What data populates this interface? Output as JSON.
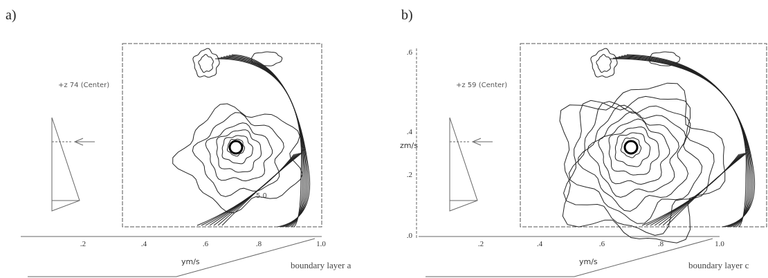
{
  "panels": [
    {
      "label": "a)",
      "annotation": "+z 74 (Center)",
      "xticks": [
        ".2",
        ".4",
        ".6",
        ".8",
        "1.0"
      ],
      "xlabel": "ym/s",
      "contour_label": "5.0",
      "caption": "boundary layer a"
    },
    {
      "label": "b)",
      "annotation": "+z 59 (Center)",
      "xticks": [
        ".2",
        ".4",
        ".6",
        ".8",
        "1.0"
      ],
      "xlabel": "ym/s",
      "yticks": [
        ".6",
        ".4",
        ".2",
        ".0"
      ],
      "ylabel": "zm/s",
      "caption": "boundary layer c"
    }
  ]
}
